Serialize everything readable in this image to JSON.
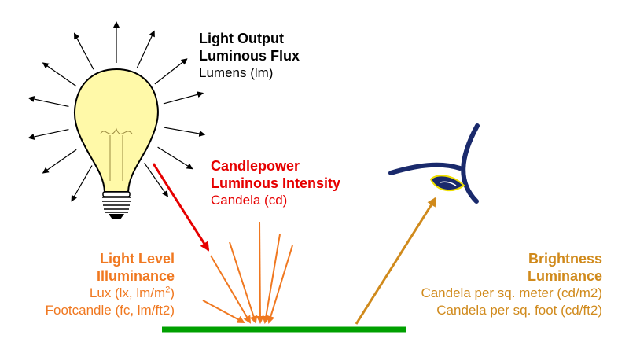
{
  "colors": {
    "black": "#000000",
    "red": "#e60000",
    "orange": "#f07820",
    "tan": "#d08a1c",
    "green": "#00a000",
    "eye_blue": "#1a2a6c",
    "eye_yellow": "#f0e000",
    "bulb_yellow": "#fff9a8"
  },
  "light_output": {
    "title": "Light Output",
    "subtitle": "Luminous Flux",
    "unit": "Lumens (lm)"
  },
  "candlepower": {
    "title": "Candlepower",
    "subtitle": "Luminous Intensity",
    "unit": "Candela (cd)"
  },
  "light_level": {
    "title": "Light Level",
    "subtitle": "Illuminance",
    "unit_lux_prefix": "Lux (lx, lm/m",
    "unit_lux_sup": "2",
    "unit_lux_suffix": ")",
    "unit_fc": "Footcandle (fc, lm/ft2)"
  },
  "brightness": {
    "title": "Brightness",
    "subtitle": "Luminance",
    "unit_m2": "Candela per sq. meter (cd/m2)",
    "unit_ft2": "Candela per sq. foot (cd/ft2)"
  },
  "icons": [
    "light-bulb-icon",
    "eye-icon"
  ]
}
